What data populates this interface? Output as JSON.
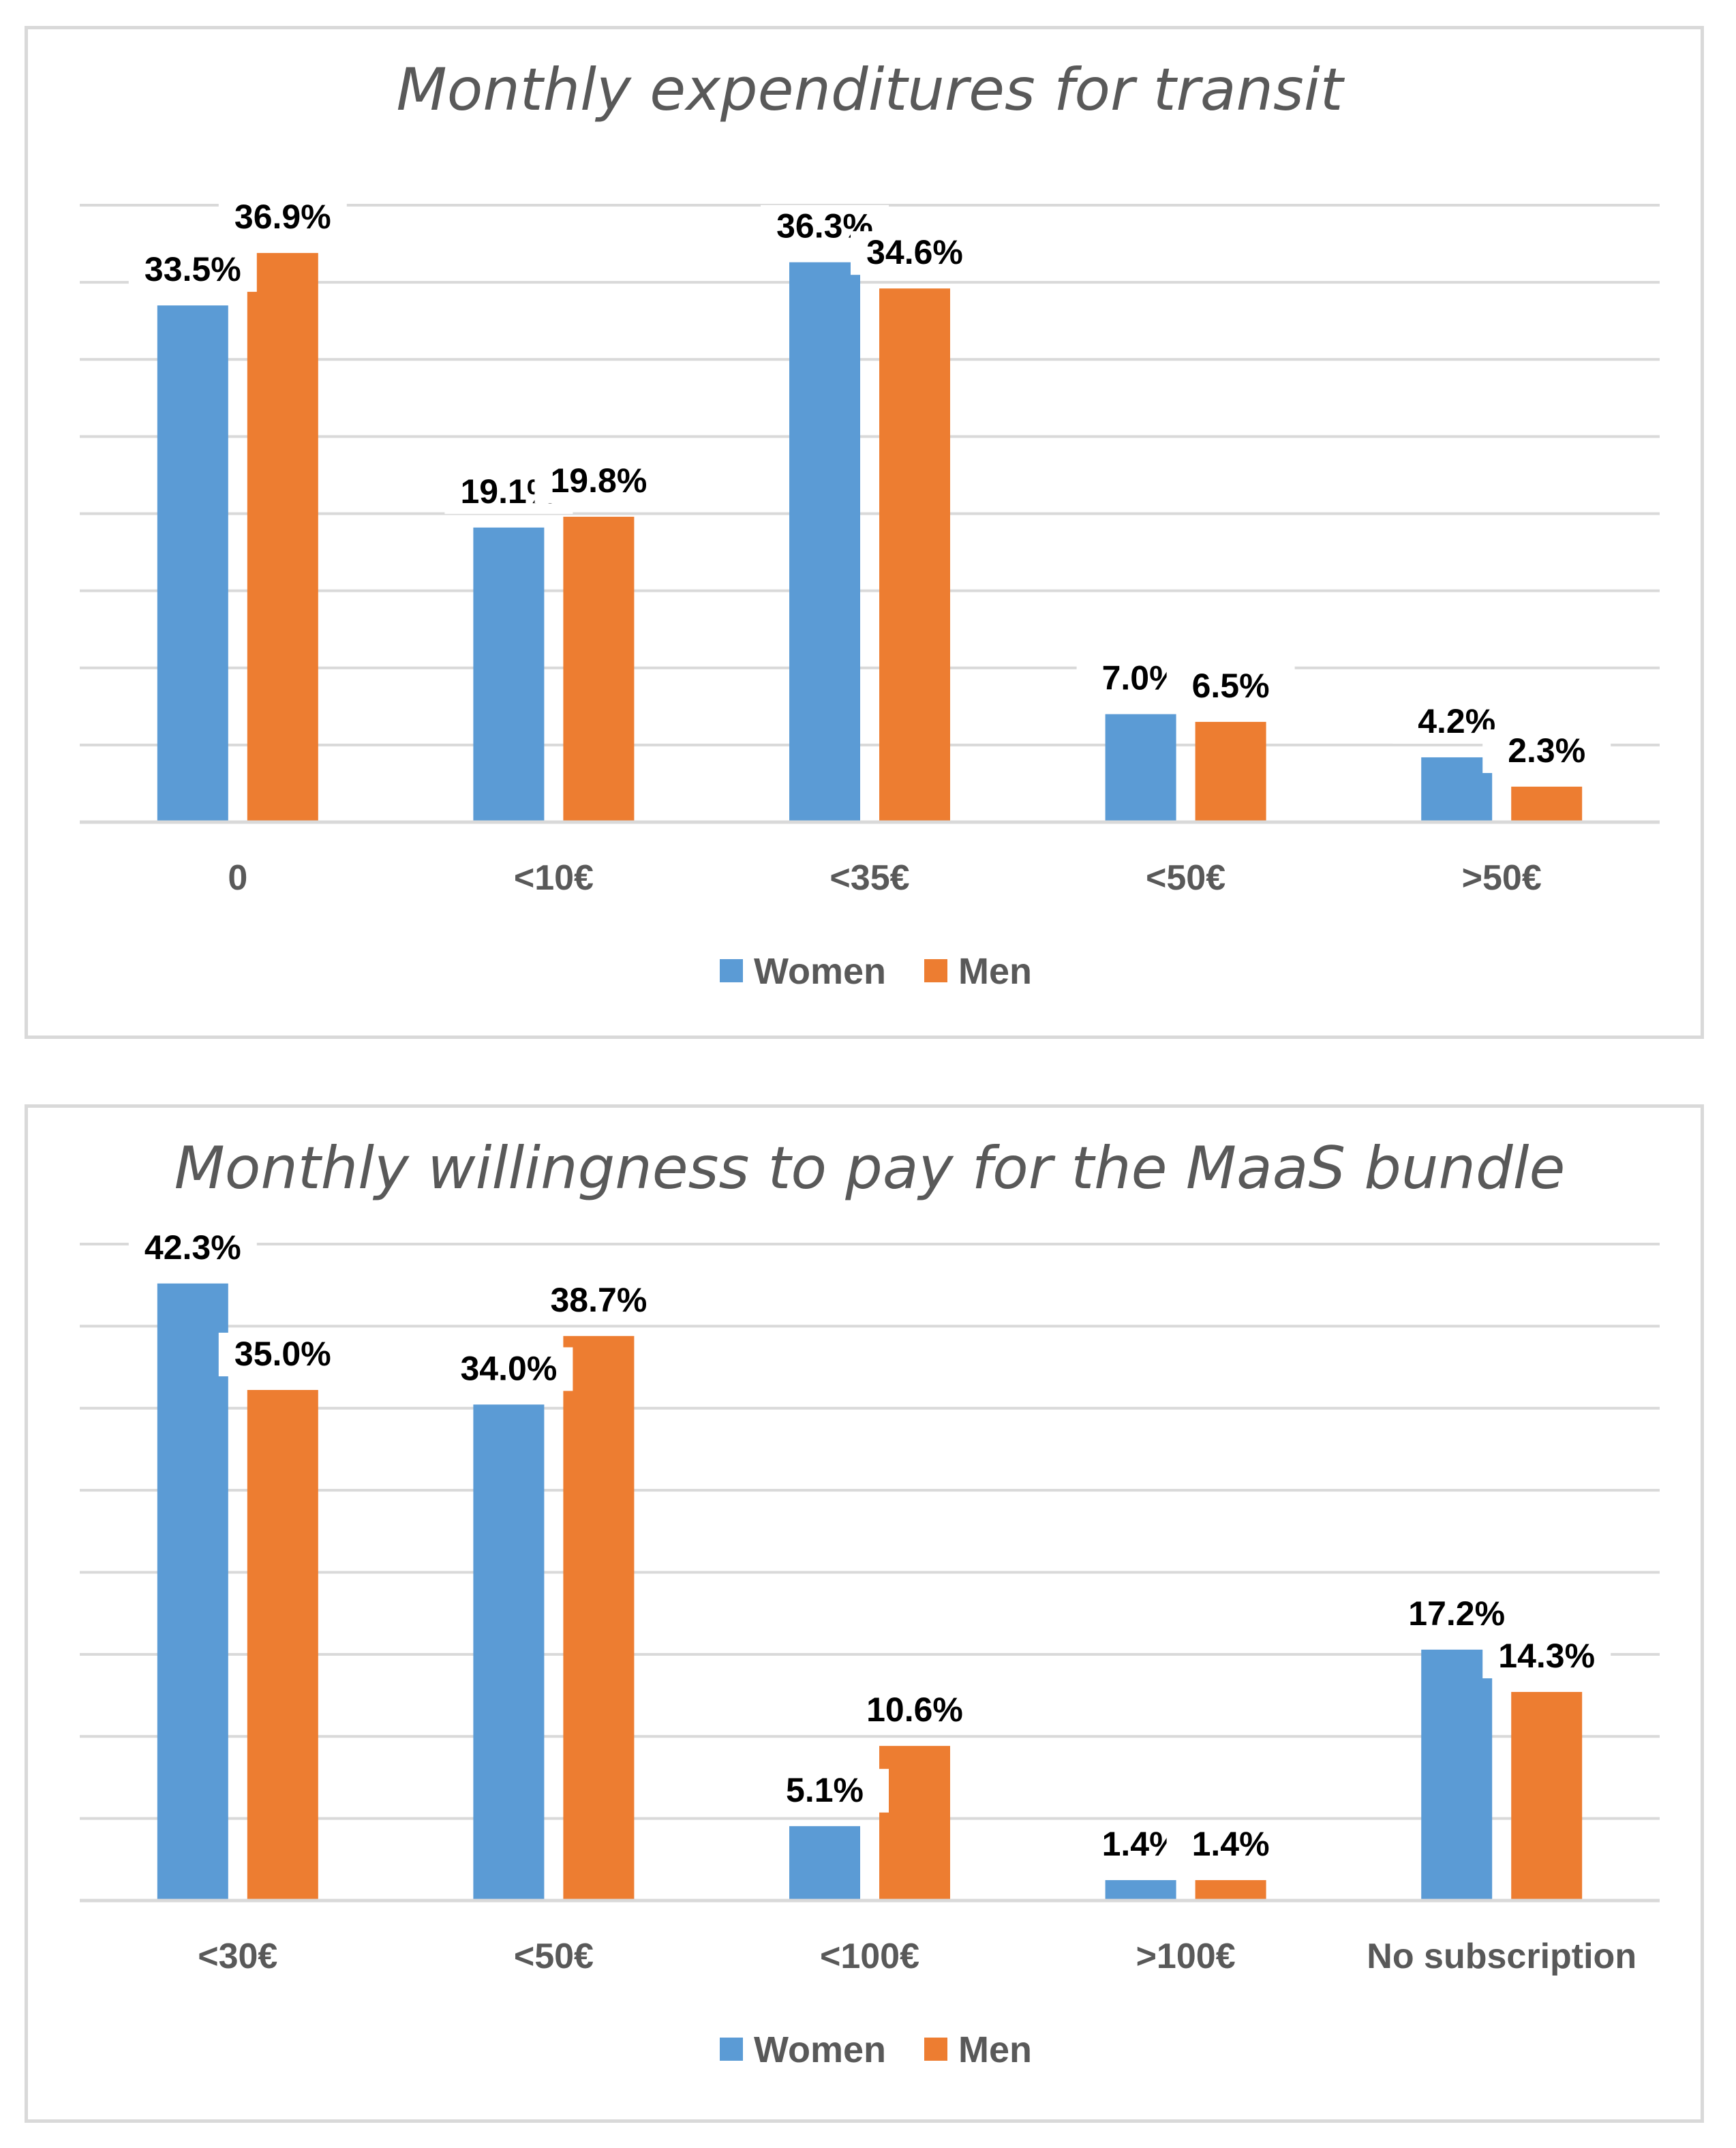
{
  "chart_data": [
    {
      "type": "bar",
      "title": "Monthly expenditures for transit",
      "xlabel": "",
      "ylabel": "",
      "ylim": [
        0,
        40
      ],
      "grid": true,
      "legend_position": "bottom-center",
      "categories": [
        "0",
        "<10€",
        "<35€",
        "<50€",
        ">50€"
      ],
      "series": [
        {
          "name": "Women",
          "color": "#5b9bd5",
          "values": [
            33.5,
            19.1,
            36.3,
            7.0,
            4.2
          ],
          "labels": [
            "33.5%",
            "19.1%",
            "36.3%",
            "7.0%",
            "4.2%"
          ]
        },
        {
          "name": "Men",
          "color": "#ed7d31",
          "values": [
            36.9,
            19.8,
            34.6,
            6.5,
            2.3
          ],
          "labels": [
            "36.9%",
            "19.8%",
            "34.6%",
            "6.5%",
            "2.3%"
          ]
        }
      ]
    },
    {
      "type": "bar",
      "title": "Monthly willingness to pay for the MaaS bundle",
      "xlabel": "",
      "ylabel": "",
      "ylim": [
        0,
        45
      ],
      "grid": true,
      "legend_position": "bottom-center",
      "categories": [
        "<30€",
        "<50€",
        "<100€",
        ">100€",
        "No subscription"
      ],
      "series": [
        {
          "name": "Women",
          "color": "#5b9bd5",
          "values": [
            42.3,
            34.0,
            5.1,
            1.4,
            17.2
          ],
          "labels": [
            "42.3%",
            "34.0%",
            "5.1%",
            "1.4%",
            "17.2%"
          ]
        },
        {
          "name": "Men",
          "color": "#ed7d31",
          "values": [
            35.0,
            38.7,
            10.6,
            1.4,
            14.3
          ],
          "labels": [
            "35.0%",
            "38.7%",
            "10.6%",
            "1.4%",
            "14.3%"
          ]
        }
      ]
    }
  ],
  "colors": {
    "grid": "#d9d9d9",
    "axis": "#d9d9d9",
    "title_text": "#595959",
    "tick_text": "#595959",
    "label_text": "#000000"
  }
}
